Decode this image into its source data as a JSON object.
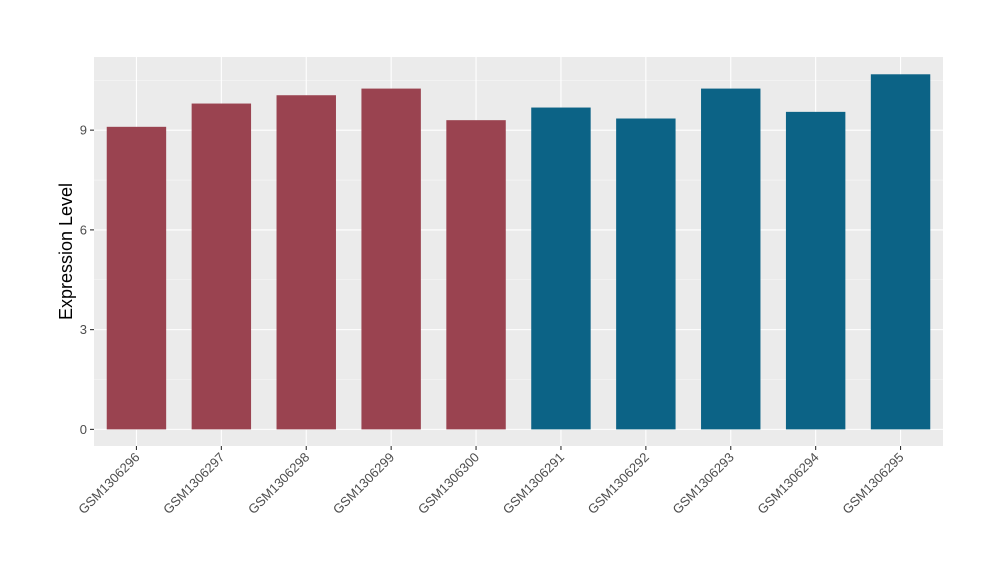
{
  "chart_data": {
    "type": "bar",
    "xlabel": "",
    "ylabel": "Expression Level",
    "ylim": [
      -0.5,
      11.2
    ],
    "yticks": [
      0,
      3,
      6,
      9
    ],
    "grid": true,
    "panel_background": "#ebebeb",
    "categories": [
      "GSM1306296",
      "GSM1306297",
      "GSM1306298",
      "GSM1306299",
      "GSM1306300",
      "GSM1306291",
      "GSM1306292",
      "GSM1306293",
      "GSM1306294",
      "GSM1306295"
    ],
    "values": [
      9.1,
      9.8,
      10.05,
      10.25,
      9.3,
      9.68,
      9.35,
      10.25,
      9.55,
      10.68
    ],
    "bar_colors": [
      "#9a4350",
      "#9a4350",
      "#9a4350",
      "#9a4350",
      "#9a4350",
      "#0c6386",
      "#0c6386",
      "#0c6386",
      "#0c6386",
      "#0c6386"
    ]
  }
}
